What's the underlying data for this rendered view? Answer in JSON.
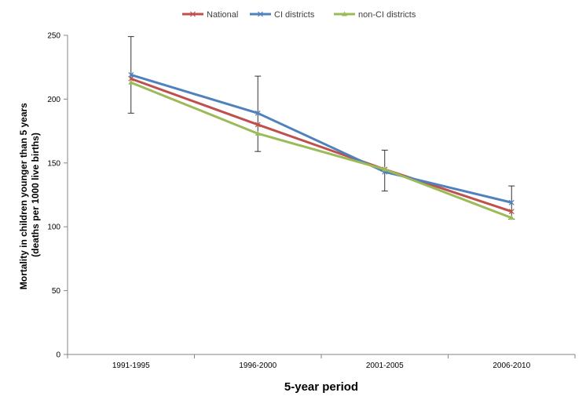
{
  "chart_data": {
    "type": "line",
    "title": "",
    "xlabel": "5-year period",
    "ylabel_line1": "Mortality in children younger than 5 years",
    "ylabel_line2": "(deaths per 1000  live births)",
    "categories": [
      "1991-1995",
      "1996-2000",
      "2001-2005",
      "2006-2010"
    ],
    "ylim": [
      0,
      250
    ],
    "yticks": [
      0,
      50,
      100,
      150,
      200,
      250
    ],
    "grid": false,
    "legend_position": "top",
    "series": [
      {
        "name": "National",
        "color": "#c0504d",
        "marker": "x",
        "values": [
          216,
          180,
          145,
          112
        ]
      },
      {
        "name": "CI districts",
        "color": "#4f81bd",
        "marker": "x",
        "values": [
          219,
          189,
          143,
          119
        ]
      },
      {
        "name": "non-CI districts",
        "color": "#9bbb59",
        "marker": "triangle",
        "values": [
          213,
          173,
          145,
          107
        ]
      }
    ],
    "error_bars": {
      "series": "CI districts",
      "lower": [
        189,
        159,
        128,
        106
      ],
      "upper": [
        249,
        218,
        160,
        132
      ]
    }
  }
}
